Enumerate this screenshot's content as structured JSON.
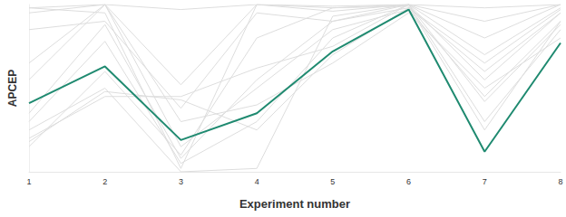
{
  "chart_data": {
    "type": "line",
    "x_label": "Experiment number",
    "y_label": "APCEP",
    "categories": [
      "1",
      "2",
      "3",
      "4",
      "5",
      "6",
      "7",
      "8"
    ],
    "ylim": [
      0,
      1
    ],
    "tick_labels": "x",
    "grid": false,
    "marker": "none",
    "line_style": "solid",
    "series": [
      {
        "color": "#dddddd",
        "values": [
          0.98,
          1,
          0.97,
          1,
          0.99,
          1,
          0.98,
          1
        ]
      },
      {
        "color": "#dddddd",
        "values": [
          0.95,
          1,
          0.52,
          1,
          0.96,
          1,
          0.9,
          1
        ]
      },
      {
        "color": "#dddddd",
        "values": [
          0.85,
          0.9,
          0.38,
          0.95,
          0.9,
          0.98,
          0.6,
          0.95
        ]
      },
      {
        "color": "#dddddd",
        "values": [
          0.55,
          1,
          0.15,
          0.5,
          0.85,
          0.97,
          0.45,
          0.9
        ]
      },
      {
        "color": "#dddddd",
        "values": [
          0.3,
          0.78,
          0.05,
          0.3,
          0.8,
          1,
          0.3,
          0.85
        ]
      },
      {
        "color": "#dddddd",
        "values": [
          0.2,
          0.45,
          0.45,
          0.62,
          0.75,
          1,
          0.42,
          0.88
        ]
      },
      {
        "color": "#dddddd",
        "values": [
          0.25,
          0.5,
          0.0,
          0.02,
          0.93,
          1,
          0.7,
          0.98
        ]
      },
      {
        "color": "#dddddd",
        "values": [
          0.15,
          0.6,
          0.1,
          0.8,
          0.98,
          1,
          0.8,
          1
        ]
      },
      {
        "color": "#dddddd",
        "values": [
          0.65,
          1,
          0.3,
          0.4,
          0.65,
          0.95,
          0.5,
          0.8
        ]
      },
      {
        "color": "#dddddd",
        "values": [
          0.98,
          0.95,
          0.02,
          1,
          0.98,
          0.99,
          0.25,
          0.9
        ]
      },
      {
        "color": "#dddddd",
        "values": [
          0.35,
          0.88,
          0.08,
          0.55,
          0.9,
          1,
          0.55,
          0.95
        ]
      },
      {
        "color": "#dddddd",
        "values": [
          0.18,
          0.48,
          0.43,
          0.25,
          0.7,
          0.98,
          0.65,
          0.97
        ]
      },
      {
        "color": "#1f8a70",
        "values": [
          0.41,
          0.63,
          0.19,
          0.35,
          0.72,
          0.97,
          0.12,
          0.77
        ]
      }
    ]
  }
}
